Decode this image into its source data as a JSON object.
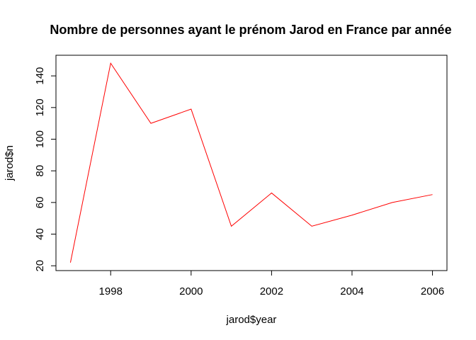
{
  "chart_data": {
    "type": "line",
    "title": "Nombre de personnes ayant le prénom Jarod en France par année",
    "xlabel": "jarod$year",
    "ylabel": "jarod$n",
    "x": [
      1997,
      1998,
      1999,
      2000,
      2001,
      2002,
      2003,
      2004,
      2005,
      2006
    ],
    "series": [
      {
        "values": [
          22,
          148,
          110,
          119,
          45,
          66,
          45,
          52,
          60,
          65
        ],
        "color": "#ff0000"
      }
    ],
    "xlim": [
      1996.64,
      2006.36
    ],
    "ylim": [
      16.96,
      153.04
    ],
    "xticks": [
      1998,
      2000,
      2002,
      2004,
      2006
    ],
    "yticks": [
      20,
      40,
      60,
      80,
      100,
      120,
      140
    ],
    "grid": false
  }
}
